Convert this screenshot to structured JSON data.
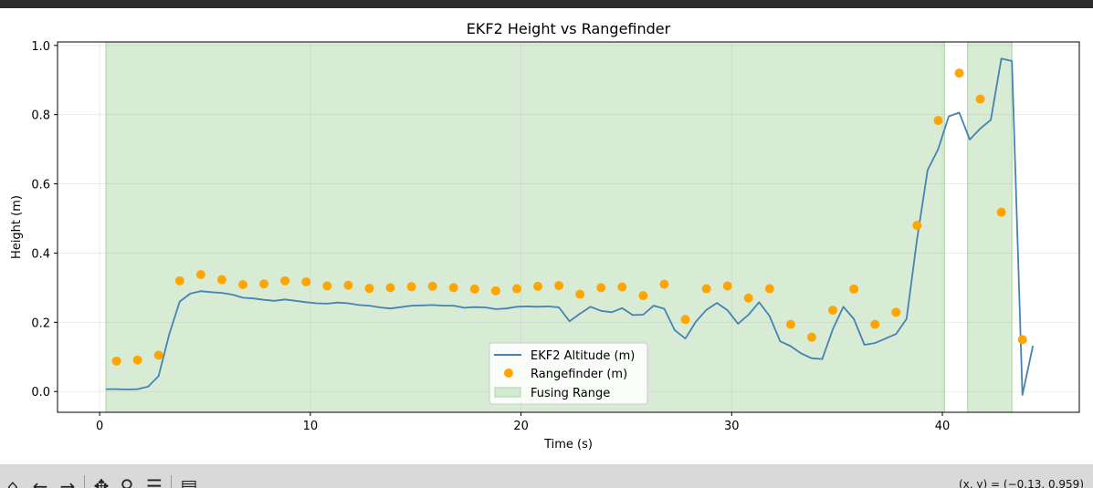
{
  "window": {
    "coords_readout": "(x, y) = (−0.13, 0.959)"
  },
  "toolbar": {
    "icons": [
      "home-icon",
      "back-icon",
      "forward-icon",
      "pan-icon",
      "zoom-icon",
      "configure-icon",
      "save-icon"
    ]
  },
  "chart_data": {
    "type": "line",
    "title": "EKF2 Height vs Rangefinder",
    "xlabel": "Time (s)",
    "ylabel": "Height (m)",
    "xlim": [
      -2,
      46.5
    ],
    "ylim": [
      -0.06,
      1.01
    ],
    "xticks": [
      0,
      10,
      20,
      30,
      40
    ],
    "yticks": [
      0.0,
      0.2,
      0.4,
      0.6,
      0.8,
      1.0
    ],
    "xtick_labels": [
      "0",
      "10",
      "20",
      "30",
      "40"
    ],
    "ytick_labels": [
      "0.0",
      "0.2",
      "0.4",
      "0.6",
      "0.8",
      "1.0"
    ],
    "grid": true,
    "legend": {
      "placement": "bottom-center",
      "entries": [
        "EKF2 Altitude (m)",
        "Rangefinder (m)",
        "Fusing Range"
      ]
    },
    "colors": {
      "ekf": "#4682b4",
      "rangefinder": "#ffa500",
      "fusing": "#a8d5a2"
    },
    "fusing_ranges": [
      [
        0.3,
        40.1
      ],
      [
        41.2,
        43.3
      ]
    ],
    "series": [
      {
        "name": "EKF2 Altitude (m)",
        "kind": "line",
        "x": [
          0.3,
          0.8,
          1.3,
          1.8,
          2.3,
          2.8,
          3.3,
          3.8,
          4.3,
          4.8,
          5.3,
          5.8,
          6.3,
          6.8,
          7.3,
          7.8,
          8.3,
          8.8,
          9.3,
          9.8,
          10.3,
          10.8,
          11.3,
          11.8,
          12.3,
          12.8,
          13.3,
          13.8,
          14.3,
          14.8,
          15.3,
          15.8,
          16.3,
          16.8,
          17.3,
          17.8,
          18.3,
          18.8,
          19.3,
          19.8,
          20.3,
          20.8,
          21.3,
          21.8,
          22.3,
          22.8,
          23.3,
          23.8,
          24.3,
          24.8,
          25.3,
          25.8,
          26.3,
          26.8,
          27.3,
          27.8,
          28.3,
          28.8,
          29.3,
          29.8,
          30.3,
          30.8,
          31.3,
          31.8,
          32.3,
          32.8,
          33.3,
          33.8,
          34.3,
          34.8,
          35.3,
          35.8,
          36.3,
          36.8,
          37.3,
          37.8,
          38.3,
          38.8,
          39.3,
          39.8,
          40.3,
          40.8,
          41.3,
          41.8,
          42.3,
          42.8,
          43.3,
          43.8,
          44.3
        ],
        "y": [
          0.007,
          0.007,
          0.006,
          0.007,
          0.014,
          0.045,
          0.165,
          0.26,
          0.283,
          0.29,
          0.287,
          0.285,
          0.28,
          0.271,
          0.269,
          0.265,
          0.262,
          0.266,
          0.262,
          0.258,
          0.255,
          0.254,
          0.257,
          0.255,
          0.25,
          0.248,
          0.243,
          0.24,
          0.244,
          0.248,
          0.249,
          0.25,
          0.248,
          0.248,
          0.242,
          0.244,
          0.243,
          0.238,
          0.24,
          0.245,
          0.246,
          0.245,
          0.246,
          0.243,
          0.203,
          0.225,
          0.245,
          0.233,
          0.229,
          0.241,
          0.221,
          0.222,
          0.248,
          0.239,
          0.177,
          0.153,
          0.202,
          0.236,
          0.256,
          0.235,
          0.196,
          0.222,
          0.258,
          0.218,
          0.145,
          0.131,
          0.11,
          0.096,
          0.094,
          0.18,
          0.245,
          0.21,
          0.135,
          0.14,
          0.153,
          0.166,
          0.21,
          0.44,
          0.64,
          0.7,
          0.795,
          0.806,
          0.728,
          0.76,
          0.785,
          0.962,
          0.955,
          -0.01,
          0.132
        ]
      },
      {
        "name": "Rangefinder (m)",
        "kind": "scatter",
        "x": [
          0.8,
          1.8,
          2.8,
          3.8,
          4.8,
          5.8,
          6.8,
          7.8,
          8.8,
          9.8,
          10.8,
          11.8,
          12.8,
          13.8,
          14.8,
          15.8,
          16.8,
          17.8,
          18.8,
          19.8,
          20.8,
          21.8,
          22.8,
          23.8,
          24.8,
          25.8,
          26.8,
          27.8,
          28.8,
          29.8,
          30.8,
          31.8,
          32.8,
          33.8,
          34.8,
          35.8,
          36.8,
          37.8,
          38.8,
          39.8,
          40.8,
          41.8,
          42.8,
          43.8
        ],
        "y": [
          0.088,
          0.091,
          0.105,
          0.32,
          0.338,
          0.323,
          0.309,
          0.311,
          0.32,
          0.317,
          0.305,
          0.307,
          0.298,
          0.3,
          0.303,
          0.304,
          0.3,
          0.296,
          0.291,
          0.297,
          0.304,
          0.306,
          0.281,
          0.3,
          0.302,
          0.277,
          0.31,
          0.208,
          0.297,
          0.305,
          0.27,
          0.297,
          0.194,
          0.157,
          0.235,
          0.296,
          0.194,
          0.229,
          0.48,
          0.783,
          0.92,
          0.845,
          0.518,
          0.15
        ]
      }
    ]
  }
}
